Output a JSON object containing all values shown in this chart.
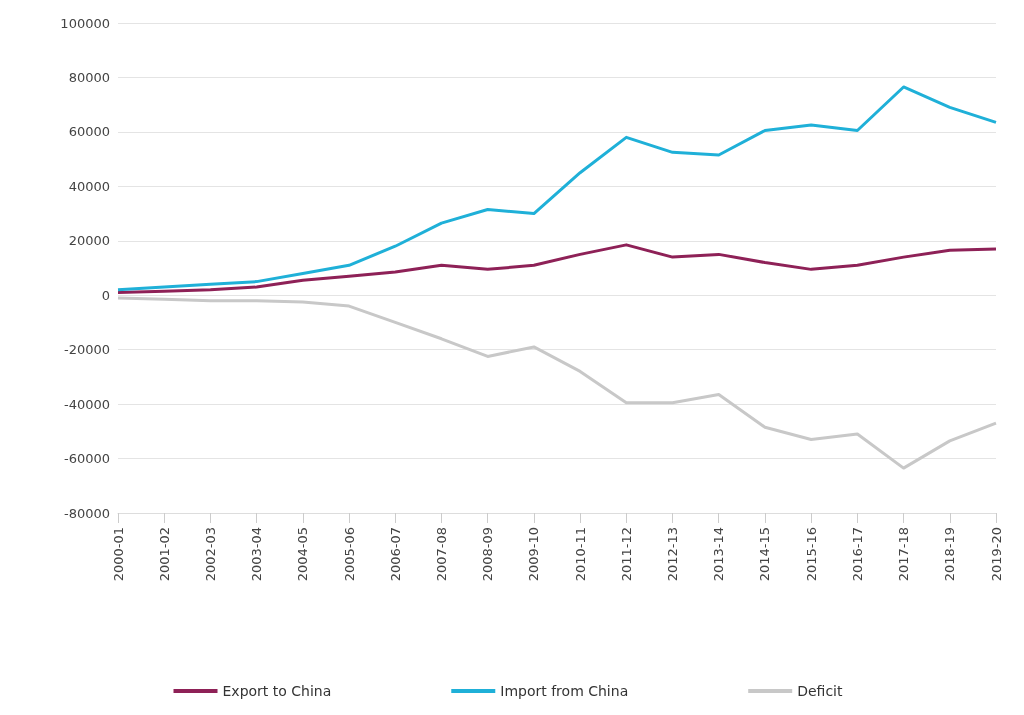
{
  "chart_data": {
    "type": "line",
    "categories": [
      "2000-01",
      "2001-02",
      "2002-03",
      "2003-04",
      "2004-05",
      "2005-06",
      "2006-07",
      "2007-08",
      "2008-09",
      "2009-10",
      "2010-11",
      "2011-12",
      "2012-13",
      "2013-14",
      "2014-15",
      "2015-16",
      "2016-17",
      "2017-18",
      "2018-19",
      "2019-20"
    ],
    "series": [
      {
        "name": "Export to China",
        "color": "#8e2157",
        "values": [
          1000,
          1500,
          2000,
          3000,
          5500,
          7000,
          8500,
          11000,
          9500,
          11000,
          15000,
          18500,
          14000,
          15000,
          12000,
          9500,
          11000,
          14000,
          16500,
          17000
        ]
      },
      {
        "name": "Import from China",
        "color": "#1fb0d8",
        "values": [
          2000,
          3000,
          4000,
          5000,
          8000,
          11000,
          18000,
          26500,
          31500,
          30000,
          45000,
          58000,
          52500,
          51500,
          60500,
          62500,
          60500,
          76500,
          69000,
          63500
        ]
      },
      {
        "name": "Deficit",
        "color": "#c8c8c8",
        "values": [
          -1000,
          -1500,
          -2000,
          -2000,
          -2500,
          -4000,
          -10000,
          -16000,
          -22500,
          -19000,
          -28000,
          -39500,
          -39500,
          -36500,
          -48500,
          -53000,
          -51000,
          -63500,
          -53500,
          -47000
        ]
      }
    ],
    "ylim": [
      -80000,
      100000
    ],
    "yticks": [
      -80000,
      -60000,
      -40000,
      -20000,
      0,
      20000,
      40000,
      60000,
      80000,
      100000
    ],
    "grid": "y",
    "legend": "bottom",
    "marker": "none",
    "line_style": "solid"
  }
}
